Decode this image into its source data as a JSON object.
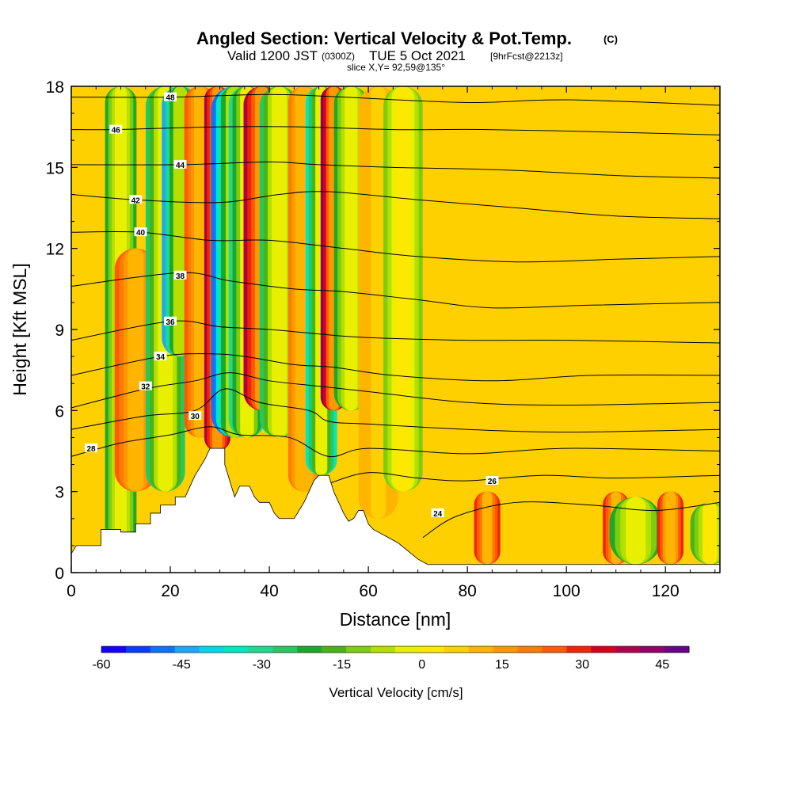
{
  "title": {
    "main": "Angled Section: Vertical Velocity & Pot.Temp.",
    "main_mark": "(C)",
    "valid_prefix": "Valid 1200 JST",
    "valid_utc": "(0300Z)",
    "valid_date": "TUE 5 Oct 2021",
    "forecast": "[9hrFcst@2213z]",
    "slice": "slice X,Y= 92,59@135°"
  },
  "chart_data": {
    "type": "heatmap",
    "xlabel": "Distance [nm]",
    "ylabel": "Height [Kft MSL]",
    "xlim": [
      0,
      131
    ],
    "ylim": [
      0,
      18
    ],
    "x_ticks": [
      0,
      20,
      40,
      60,
      80,
      100,
      120
    ],
    "y_ticks": [
      0,
      3,
      6,
      9,
      12,
      15,
      18
    ],
    "colorbar": {
      "label": "Vertical Velocity [cm/s]",
      "range": [
        -60,
        50
      ],
      "tick_values": [
        -60,
        -45,
        -30,
        -15,
        0,
        15,
        30,
        45
      ],
      "colors": [
        "#1600ff",
        "#0a3cff",
        "#1070ff",
        "#1aa8ff",
        "#00d8e8",
        "#00e8c0",
        "#20d890",
        "#28c860",
        "#1ea82a",
        "#48b418",
        "#7ccc10",
        "#b4e000",
        "#e8f000",
        "#ffe800",
        "#ffd000",
        "#ffb400",
        "#ff9800",
        "#ff7a00",
        "#ff5a00",
        "#f02400",
        "#d4001e",
        "#b0004a",
        "#90006a",
        "#6a0088"
      ]
    },
    "contour_levels": [
      24,
      26,
      28,
      30,
      32,
      34,
      36,
      38,
      40,
      42,
      44,
      46,
      48
    ],
    "terrain_profile": [
      [
        0,
        0.7
      ],
      [
        1,
        1.0
      ],
      [
        6,
        1.0
      ],
      [
        6,
        1.6
      ],
      [
        10,
        1.6
      ],
      [
        10,
        1.5
      ],
      [
        13,
        1.5
      ],
      [
        13,
        1.8
      ],
      [
        16,
        1.8
      ],
      [
        16,
        2.2
      ],
      [
        18,
        2.2
      ],
      [
        18,
        2.5
      ],
      [
        21,
        2.5
      ],
      [
        21,
        2.8
      ],
      [
        23,
        2.8
      ],
      [
        24,
        3.2
      ],
      [
        25,
        3.6
      ],
      [
        27,
        4.2
      ],
      [
        28,
        4.6
      ],
      [
        31,
        4.6
      ],
      [
        31,
        4.0
      ],
      [
        32,
        3.4
      ],
      [
        33,
        2.8
      ],
      [
        34,
        3.2
      ],
      [
        36,
        3.2
      ],
      [
        37,
        2.8
      ],
      [
        38,
        2.6
      ],
      [
        40,
        2.6
      ],
      [
        41,
        2.2
      ],
      [
        42,
        2.0
      ],
      [
        45,
        2.0
      ],
      [
        46,
        2.3
      ],
      [
        47,
        2.6
      ],
      [
        48,
        3.0
      ],
      [
        49,
        3.4
      ],
      [
        50,
        3.6
      ],
      [
        52,
        3.6
      ],
      [
        53,
        3.0
      ],
      [
        54,
        2.6
      ],
      [
        55,
        2.2
      ],
      [
        56,
        1.9
      ],
      [
        57,
        2.0
      ],
      [
        58,
        2.3
      ],
      [
        59,
        2.3
      ],
      [
        60,
        1.8
      ],
      [
        61,
        1.6
      ],
      [
        62,
        1.5
      ],
      [
        64,
        1.3
      ],
      [
        66,
        1.1
      ],
      [
        68,
        0.8
      ],
      [
        70,
        0.5
      ],
      [
        72,
        0.3
      ],
      [
        131,
        0.3
      ]
    ],
    "theta_contours": [
      {
        "level": 24,
        "points": [
          [
            71,
            1.3
          ],
          [
            78,
            2.1
          ],
          [
            90,
            2.6
          ],
          [
            105,
            2.5
          ],
          [
            118,
            2.3
          ],
          [
            131,
            2.6
          ]
        ],
        "label_at": [
          74,
          2.2
        ]
      },
      {
        "level": 26,
        "points": [
          [
            52,
            3.3
          ],
          [
            60,
            3.7
          ],
          [
            70,
            3.5
          ],
          [
            80,
            3.4
          ],
          [
            95,
            3.6
          ],
          [
            110,
            3.5
          ],
          [
            131,
            3.6
          ]
        ],
        "label_at": [
          85,
          3.4
        ]
      },
      {
        "level": 28,
        "points": [
          [
            0,
            4.3
          ],
          [
            10,
            4.8
          ],
          [
            20,
            5.1
          ],
          [
            28,
            5.4
          ],
          [
            34,
            5.1
          ],
          [
            44,
            5.0
          ],
          [
            52,
            4.3
          ],
          [
            60,
            4.6
          ],
          [
            80,
            4.4
          ],
          [
            100,
            4.6
          ],
          [
            131,
            4.5
          ]
        ],
        "label_at": [
          4,
          4.6
        ]
      },
      {
        "level": 30,
        "points": [
          [
            0,
            5.3
          ],
          [
            15,
            5.8
          ],
          [
            25,
            6.0
          ],
          [
            31,
            6.8
          ],
          [
            38,
            6.3
          ],
          [
            48,
            6.0
          ],
          [
            52,
            5.6
          ],
          [
            60,
            5.5
          ],
          [
            80,
            5.3
          ],
          [
            100,
            5.2
          ],
          [
            131,
            5.3
          ]
        ],
        "label_at": [
          25,
          5.8
        ]
      },
      {
        "level": 32,
        "points": [
          [
            0,
            6.1
          ],
          [
            15,
            6.8
          ],
          [
            25,
            7.1
          ],
          [
            32,
            7.4
          ],
          [
            40,
            7.1
          ],
          [
            50,
            6.9
          ],
          [
            60,
            6.7
          ],
          [
            80,
            6.3
          ],
          [
            100,
            6.2
          ],
          [
            131,
            6.3
          ]
        ],
        "label_at": [
          15,
          6.9
        ]
      },
      {
        "level": 34,
        "points": [
          [
            0,
            7.3
          ],
          [
            18,
            8.0
          ],
          [
            28,
            8.1
          ],
          [
            35,
            8.0
          ],
          [
            45,
            7.7
          ],
          [
            53,
            7.6
          ],
          [
            65,
            7.3
          ],
          [
            85,
            7.1
          ],
          [
            105,
            7.3
          ],
          [
            131,
            7.3
          ]
        ],
        "label_at": [
          18,
          8.0
        ]
      },
      {
        "level": 36,
        "points": [
          [
            0,
            8.6
          ],
          [
            20,
            9.3
          ],
          [
            30,
            9.1
          ],
          [
            40,
            9.0
          ],
          [
            52,
            8.8
          ],
          [
            60,
            8.7
          ],
          [
            80,
            8.6
          ],
          [
            100,
            8.6
          ],
          [
            131,
            8.5
          ]
        ],
        "label_at": [
          20,
          9.3
        ]
      },
      {
        "level": 38,
        "points": [
          [
            0,
            10.6
          ],
          [
            22,
            11.1
          ],
          [
            32,
            10.8
          ],
          [
            45,
            10.5
          ],
          [
            55,
            10.4
          ],
          [
            70,
            10.1
          ],
          [
            85,
            9.8
          ],
          [
            105,
            9.9
          ],
          [
            131,
            10.0
          ]
        ],
        "label_at": [
          22,
          11.0
        ]
      },
      {
        "level": 40,
        "points": [
          [
            0,
            12.6
          ],
          [
            14,
            12.6
          ],
          [
            28,
            12.3
          ],
          [
            40,
            12.3
          ],
          [
            55,
            12.0
          ],
          [
            70,
            11.7
          ],
          [
            90,
            11.5
          ],
          [
            110,
            11.6
          ],
          [
            131,
            11.7
          ]
        ],
        "label_at": [
          14,
          12.6
        ]
      },
      {
        "level": 42,
        "points": [
          [
            0,
            14.0
          ],
          [
            13,
            13.8
          ],
          [
            30,
            13.7
          ],
          [
            42,
            14.0
          ],
          [
            52,
            14.1
          ],
          [
            70,
            13.8
          ],
          [
            90,
            13.5
          ],
          [
            110,
            13.2
          ],
          [
            131,
            13.1
          ]
        ],
        "label_at": [
          13,
          13.8
        ]
      },
      {
        "level": 44,
        "points": [
          [
            0,
            15.1
          ],
          [
            22,
            15.1
          ],
          [
            40,
            15.2
          ],
          [
            50,
            15.1
          ],
          [
            65,
            15.0
          ],
          [
            88,
            14.9
          ],
          [
            110,
            14.7
          ],
          [
            131,
            14.6
          ]
        ],
        "label_at": [
          22,
          15.1
        ]
      },
      {
        "level": 46,
        "points": [
          [
            0,
            16.4
          ],
          [
            9,
            16.4
          ],
          [
            30,
            16.5
          ],
          [
            46,
            16.5
          ],
          [
            65,
            16.4
          ],
          [
            84,
            16.4
          ],
          [
            110,
            16.3
          ],
          [
            131,
            16.2
          ]
        ],
        "label_at": [
          9,
          16.4
        ]
      },
      {
        "level": 48,
        "points": [
          [
            0,
            17.6
          ],
          [
            20,
            17.6
          ],
          [
            40,
            17.7
          ],
          [
            55,
            17.6
          ],
          [
            80,
            17.4
          ],
          [
            100,
            17.5
          ],
          [
            131,
            17.3
          ]
        ],
        "label_at": [
          20,
          17.6
        ]
      }
    ],
    "velocity_features": [
      {
        "x": 10,
        "width": 1.2,
        "y_from": 0.5,
        "y_to": 18,
        "w": -20
      },
      {
        "x": 13,
        "width": 1.6,
        "y_from": 3,
        "y_to": 12,
        "w": 25
      },
      {
        "x": 19,
        "width": 1.5,
        "y_from": 3,
        "y_to": 18,
        "w": -25
      },
      {
        "x": 22,
        "width": 1.4,
        "y_from": 8,
        "y_to": 18,
        "w": -45
      },
      {
        "x": 26,
        "width": 1.2,
        "y_from": 5,
        "y_to": 18,
        "w": 25
      },
      {
        "x": 29.5,
        "width": 1.0,
        "y_from": 4.5,
        "y_to": 18,
        "w": 40
      },
      {
        "x": 33,
        "width": 1.8,
        "y_from": 5,
        "y_to": 18,
        "w": -48
      },
      {
        "x": 35.5,
        "width": 1.4,
        "y_from": 5,
        "y_to": 18,
        "w": -30
      },
      {
        "x": 38.5,
        "width": 1.4,
        "y_from": 6,
        "y_to": 18,
        "w": 40
      },
      {
        "x": 42,
        "width": 1.5,
        "y_from": 5,
        "y_to": 18,
        "w": -25
      },
      {
        "x": 47,
        "width": 1.2,
        "y_from": 3,
        "y_to": 18,
        "w": 20
      },
      {
        "x": 50.5,
        "width": 1.2,
        "y_from": 3.6,
        "y_to": 18,
        "w": -35
      },
      {
        "x": 53,
        "width": 1.0,
        "y_from": 6,
        "y_to": 18,
        "w": 45
      },
      {
        "x": 56.5,
        "width": 1.3,
        "y_from": 6,
        "y_to": 18,
        "w": -20
      },
      {
        "x": 62,
        "width": 1.5,
        "y_from": 2,
        "y_to": 18,
        "w": 12
      },
      {
        "x": 67,
        "width": 1.5,
        "y_from": 3,
        "y_to": 18,
        "w": -12
      },
      {
        "x": 84,
        "width": 1.0,
        "y_from": 0.3,
        "y_to": 3,
        "w": 30
      },
      {
        "x": 110,
        "width": 1.0,
        "y_from": 0.3,
        "y_to": 3,
        "w": 30
      },
      {
        "x": 114,
        "width": 2.0,
        "y_from": 0.3,
        "y_to": 2.8,
        "w": -20
      },
      {
        "x": 121,
        "width": 1.0,
        "y_from": 0.3,
        "y_to": 3,
        "w": 28
      },
      {
        "x": 129,
        "width": 1.5,
        "y_from": 0.3,
        "y_to": 2.6,
        "w": -18
      }
    ],
    "background_w": 6
  }
}
